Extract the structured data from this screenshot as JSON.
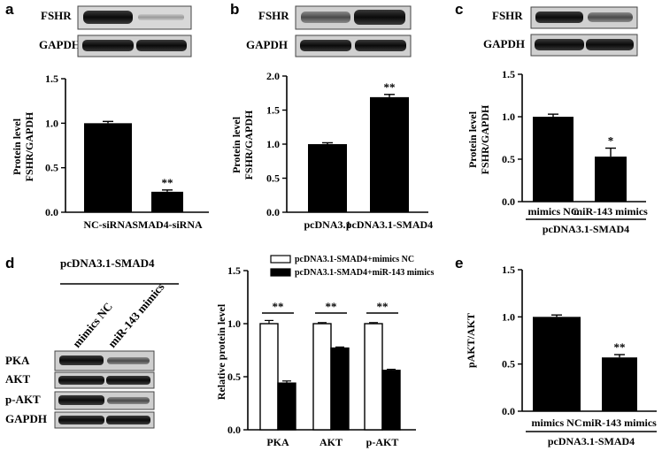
{
  "panel_labels": {
    "a": "a",
    "b": "b",
    "c": "c",
    "d": "d",
    "e": "e"
  },
  "blots": {
    "a": [
      "FSHR",
      "GAPDH"
    ],
    "b": [
      "FSHR",
      "GAPDH"
    ],
    "c": [
      "FSHR",
      "GAPDH"
    ],
    "d": {
      "group": "pcDNA3.1-SMAD4",
      "lanes": [
        "mimics NC",
        "miR-143 mimics"
      ],
      "rows": [
        "PKA",
        "AKT",
        "p-AKT",
        "GAPDH"
      ]
    }
  },
  "chart_data": [
    {
      "id": "a",
      "type": "bar",
      "categories": [
        "NC-siRNA",
        "SMAD4-siRNA"
      ],
      "values": [
        1.0,
        0.23
      ],
      "errors": [
        0.02,
        0.02
      ],
      "significance": [
        "",
        "**"
      ],
      "ylabel": [
        "Protein level",
        "FSHR/GAPDH"
      ],
      "ylim": [
        0,
        1.5
      ],
      "yticks": [
        "0.0",
        "0.5",
        "1.0",
        "1.5"
      ],
      "group_label": ""
    },
    {
      "id": "b",
      "type": "bar",
      "categories": [
        "pcDNA3.1",
        "pcDNA3.1-SMAD4"
      ],
      "values": [
        1.0,
        1.69
      ],
      "errors": [
        0.02,
        0.04
      ],
      "significance": [
        "",
        "**"
      ],
      "ylabel": [
        "Protein level",
        "FSHR/GAPDH"
      ],
      "ylim": [
        0,
        2.0
      ],
      "yticks": [
        "0.0",
        "0.5",
        "1.0",
        "1.5",
        "2.0"
      ],
      "group_label": ""
    },
    {
      "id": "c",
      "type": "bar",
      "categories": [
        "mimics NC",
        "miR-143 mimics"
      ],
      "values": [
        1.0,
        0.53
      ],
      "errors": [
        0.03,
        0.1
      ],
      "significance": [
        "",
        "*"
      ],
      "ylabel": [
        "Protein level",
        "FSHR/GAPDH"
      ],
      "ylim": [
        0,
        1.5
      ],
      "yticks": [
        "0.0",
        "0.5",
        "1.0",
        "1.5"
      ],
      "group_label": "pcDNA3.1-SMAD4"
    },
    {
      "id": "d",
      "type": "bar",
      "categories": [
        "PKA",
        "AKT",
        "p-AKT"
      ],
      "series": [
        {
          "name": "pcDNA3.1-SMAD4+mimics NC",
          "values": [
            1.0,
            1.0,
            1.0
          ],
          "errors": [
            0.03,
            0.01,
            0.01
          ],
          "fill": "#ffffff"
        },
        {
          "name": "pcDNA3.1-SMAD4+miR-143 mimics",
          "values": [
            0.44,
            0.77,
            0.56
          ],
          "errors": [
            0.02,
            0.01,
            0.01
          ],
          "fill": "#000000"
        }
      ],
      "significance": [
        "**",
        "**",
        "**"
      ],
      "ylabel": [
        "Relative protein level"
      ],
      "ylim": [
        0,
        1.5
      ],
      "yticks": [
        "0.0",
        "0.5",
        "1.0",
        "1.5"
      ],
      "legend": "top"
    },
    {
      "id": "e",
      "type": "bar",
      "categories": [
        "mimics NC",
        "miR-143 mimics"
      ],
      "values": [
        1.0,
        0.57
      ],
      "errors": [
        0.02,
        0.03
      ],
      "significance": [
        "",
        "**"
      ],
      "ylabel": [
        "pAKT/AKT"
      ],
      "ylim": [
        0,
        1.5
      ],
      "yticks": [
        "0.0",
        "0.5",
        "1.0",
        "1.5"
      ],
      "group_label": "pcDNA3.1-SMAD4"
    }
  ]
}
